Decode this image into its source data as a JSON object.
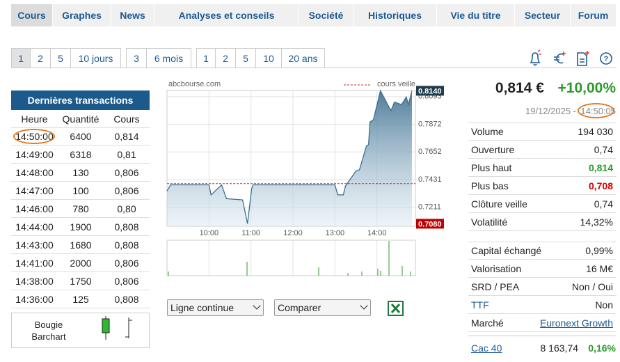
{
  "nav": [
    "Cours",
    "Graphes",
    "News",
    "Analyses et conseils",
    "Société",
    "Historiques",
    "Vie du titre",
    "Secteur",
    "Forum"
  ],
  "periods": [
    [
      "1",
      "2",
      "5",
      "10 jours"
    ],
    [
      "3",
      "6 mois"
    ],
    [
      "1",
      "2",
      "5",
      "10",
      "20 ans"
    ]
  ],
  "transactions": {
    "title": "Dernières transactions",
    "columns": [
      "Heure",
      "Quantité",
      "Cours"
    ],
    "rows": [
      [
        "14:50:00",
        "6400",
        "0,814"
      ],
      [
        "14:49:00",
        "6318",
        "0,81"
      ],
      [
        "14:48:00",
        "130",
        "0,806"
      ],
      [
        "14:47:00",
        "100",
        "0,806"
      ],
      [
        "14:46:00",
        "780",
        "0,80"
      ],
      [
        "14:44:00",
        "1900",
        "0,808"
      ],
      [
        "14:43:00",
        "1680",
        "0,808"
      ],
      [
        "14:41:00",
        "2000",
        "0,806"
      ],
      [
        "14:38:00",
        "1750",
        "0,806"
      ],
      [
        "14:36:00",
        "125",
        "0,808"
      ]
    ]
  },
  "chart_types": [
    "Bougie",
    "Barchart"
  ],
  "chart_data": {
    "type": "line",
    "source": "abcbourse.com",
    "color": "#3d6f8e",
    "x": [
      "09:00",
      "09:05",
      "10:00",
      "10:03",
      "10:18",
      "10:25",
      "10:48",
      "10:55",
      "11:01",
      "11:03",
      "13:00",
      "13:04",
      "13:12",
      "13:15",
      "13:30",
      "13:35",
      "13:45",
      "13:48",
      "13:50",
      "13:55",
      "14:05",
      "14:20",
      "14:25",
      "14:35",
      "14:42",
      "14:45",
      "14:50"
    ],
    "values": [
      0.734,
      0.739,
      0.739,
      0.731,
      0.739,
      0.728,
      0.727,
      0.708,
      0.736,
      0.739,
      0.739,
      0.731,
      0.731,
      0.738,
      0.75,
      0.751,
      0.77,
      0.771,
      0.789,
      0.791,
      0.814,
      0.798,
      0.805,
      0.803,
      0.809,
      0.803,
      0.814
    ],
    "xlim": [
      "09:00",
      "14:55"
    ],
    "xticks": [
      "10:00",
      "11:00",
      "12:00",
      "13:00",
      "14:00"
    ],
    "ylim": [
      0.706,
      0.8142
    ],
    "yticks": [
      0.7211,
      0.7431,
      0.7652,
      0.7872,
      0.8093
    ],
    "grid": true,
    "reference": {
      "value": 0.74,
      "label": "cours veille",
      "color": "#d62728"
    },
    "last": {
      "value": 0.814,
      "label": "0.8140"
    },
    "low": {
      "value": 0.708,
      "label": "0.7080"
    }
  },
  "controls": {
    "style": "Ligne continue",
    "compare": "Comparer"
  },
  "quote": {
    "price": "0,814 €",
    "change": "+10,00%",
    "date": "19/12/2025 -",
    "time": "14:50:05"
  },
  "stats": [
    [
      "Volume",
      "194 030"
    ],
    [
      "Ouverture",
      "0,74"
    ],
    [
      "Plus haut",
      "0,814"
    ],
    [
      "Plus bas",
      "0,708"
    ],
    [
      "Clôture veille",
      "0,74"
    ],
    [
      "Volatilité",
      "14,32%"
    ]
  ],
  "stats2": [
    [
      "Capital échangé",
      "0,99%"
    ],
    [
      "Valorisation",
      "16 M€"
    ],
    [
      "SRD / PEA",
      "Non / Oui"
    ],
    [
      "TTF",
      "Non"
    ],
    [
      "Marché",
      "Euronext Growth"
    ]
  ],
  "index": {
    "name": "Cac 40",
    "value": "8 163,74",
    "change": "0,16%"
  }
}
